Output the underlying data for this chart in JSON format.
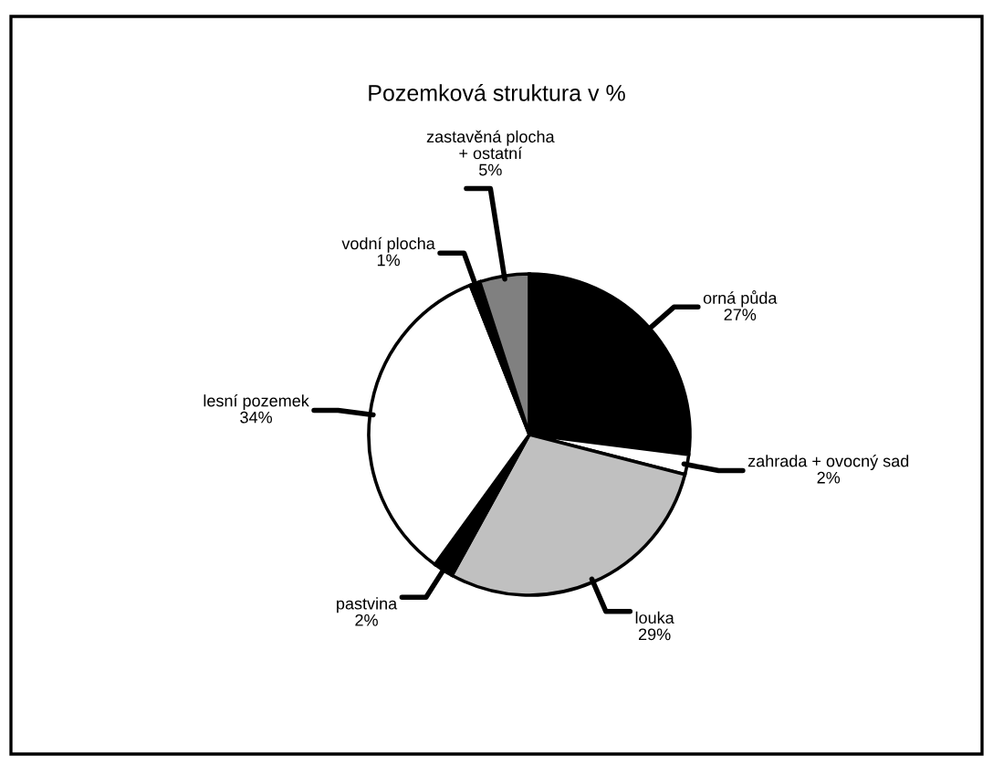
{
  "chart_data": {
    "type": "pie",
    "title": "Pozemková struktura v %",
    "categories": [
      "orná půda",
      "zahrada + ovocný sad",
      "louka",
      "pastvina",
      "lesní pozemek",
      "vodní plocha",
      "zastavěná plocha\n+ ostatní"
    ],
    "values": [
      27,
      2,
      29,
      2,
      34,
      1,
      5
    ],
    "value_labels": [
      "27%",
      "2%",
      "29%",
      "2%",
      "34%",
      "1%",
      "5%"
    ],
    "colors": [
      "#000000",
      "#ffffff",
      "#c0c0c0",
      "#000000",
      "#ffffff",
      "#000000",
      "#808080"
    ],
    "legend": false
  }
}
